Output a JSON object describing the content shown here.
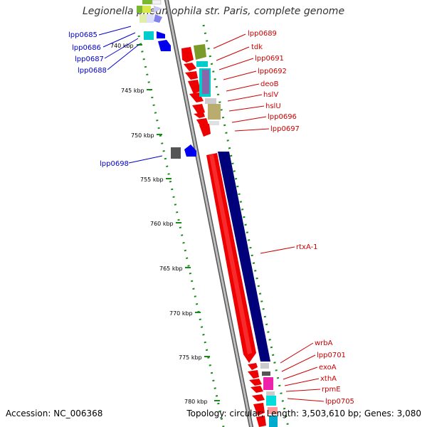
{
  "title": "Legionella pneumophila str. Paris, complete genome",
  "footer": {
    "accession": "Accession: NC_006368",
    "topology": "Topology: circular; Length: 3,503,610 bp; Genes: 3,080"
  },
  "ticks": [
    "740 kbp",
    "745 kbp",
    "750 kbp",
    "755 kbp",
    "760 kbp",
    "765 kbp",
    "770 kbp",
    "775 kbp",
    "780 kbp"
  ],
  "left_genes": [
    "lpp0685",
    "lpp0686",
    "lpp0687",
    "lpp0688",
    "lpp0698"
  ],
  "right_genes": [
    "lpp0689",
    "tdk",
    "lpp0691",
    "lpp0692",
    "deoB",
    "hslV",
    "hslU",
    "lpp0696",
    "lpp0697",
    "rtxA-1",
    "wrbA",
    "lpp0701",
    "exoA",
    "xthA",
    "rpmE",
    "lpp0705"
  ],
  "colors": {
    "left_label": "#0000cc",
    "right_label": "#cc0000",
    "tick_mark": "#1a8a1a",
    "backbone": "#888888",
    "red_feature": "#ee0000",
    "navy_feature": "#00007a",
    "blue_feature": "#0000ee"
  }
}
